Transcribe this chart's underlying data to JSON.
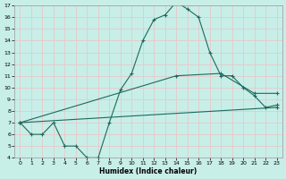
{
  "xlabel": "Humidex (Indice chaleur)",
  "background_color": "#c8eee8",
  "grid_color": "#e8c8c8",
  "line_color": "#1a6b5e",
  "xlim": [
    -0.5,
    23.5
  ],
  "ylim": [
    4,
    17
  ],
  "xticks": [
    0,
    1,
    2,
    3,
    4,
    5,
    6,
    7,
    8,
    9,
    10,
    11,
    12,
    13,
    14,
    15,
    16,
    17,
    18,
    19,
    20,
    21,
    22,
    23
  ],
  "yticks": [
    4,
    5,
    6,
    7,
    8,
    9,
    10,
    11,
    12,
    13,
    14,
    15,
    16,
    17
  ],
  "line1_x": [
    0,
    1,
    2,
    3,
    4,
    5,
    6,
    7,
    8,
    9,
    10,
    11,
    12,
    13,
    14,
    15,
    16,
    17,
    18,
    19,
    20,
    21,
    22,
    23
  ],
  "line1_y": [
    7.0,
    6.0,
    6.0,
    7.0,
    5.0,
    5.0,
    4.0,
    4.0,
    7.0,
    9.8,
    11.2,
    14.0,
    15.8,
    16.2,
    17.3,
    16.7,
    16.0,
    13.0,
    11.0,
    11.0,
    10.0,
    9.3,
    8.3,
    8.5
  ],
  "line2_x": [
    0,
    23
  ],
  "line2_y": [
    7.0,
    8.3
  ],
  "line3_x": [
    0,
    14,
    18,
    21,
    23
  ],
  "line3_y": [
    7.0,
    11.0,
    11.2,
    9.5,
    9.5
  ]
}
